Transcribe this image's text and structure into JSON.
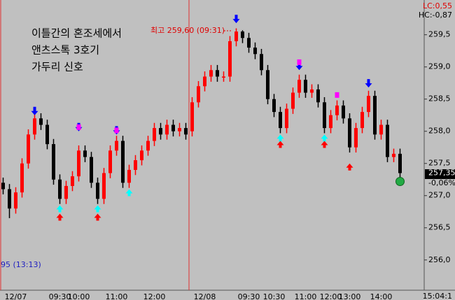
{
  "chart_data": {
    "type": "candlestick",
    "annotations": {
      "headline": [
        "이틀간의 혼조세에서",
        "앤츠스톡 3호기",
        "가두리 신호"
      ],
      "high_note": "최고 259,60 (09:31)",
      "low_note": "95 (13:13)",
      "lc": "LC:0,55",
      "hc": "HC:-0,87",
      "clock": "15:04:1",
      "change": "-0,06%"
    },
    "last_price": {
      "value": 257.35,
      "label": "257,35"
    },
    "up_color": "#ff0000",
    "down_color": "#000000",
    "categories": [
      null,
      null,
      "12/07",
      null,
      null,
      null,
      null,
      null,
      null,
      "09:30",
      null,
      null,
      "10:00",
      null,
      null,
      null,
      null,
      null,
      "11:00",
      null,
      null,
      null,
      null,
      null,
      "12:00",
      null,
      null,
      null,
      null,
      null,
      null,
      null,
      "12/08",
      null,
      null,
      null,
      null,
      null,
      null,
      "09:30",
      null,
      null,
      null,
      "10:30",
      null,
      null,
      null,
      null,
      "11:00",
      null,
      null,
      null,
      "12:00",
      null,
      null,
      "13:00",
      null,
      null,
      null,
      null,
      "14:00",
      null,
      null,
      null
    ],
    "open": [
      257.2,
      257.1,
      256.8,
      257.05,
      257.5,
      257.95,
      258.2,
      258.1,
      257.8,
      257.25,
      256.95,
      257.15,
      257.3,
      257.7,
      257.6,
      257.2,
      256.95,
      257.35,
      257.7,
      257.85,
      257.2,
      257.4,
      257.55,
      257.7,
      257.85,
      258.05,
      257.95,
      258.1,
      258.0,
      258.05,
      258.0,
      258.45,
      258.7,
      258.85,
      258.95,
      258.85,
      258.85,
      259.4,
      259.55,
      259.45,
      259.3,
      259.2,
      258.95,
      258.5,
      258.3,
      258.05,
      258.35,
      258.6,
      258.8,
      258.6,
      258.65,
      258.45,
      258.05,
      258.25,
      258.4,
      258.2,
      257.75,
      258.05,
      258.3,
      258.55,
      257.95,
      258.1,
      257.6,
      257.65
    ],
    "high": [
      257.28,
      257.18,
      257.13,
      257.58,
      258.03,
      258.28,
      258.28,
      258.18,
      257.88,
      257.33,
      257.23,
      257.38,
      257.78,
      257.78,
      257.68,
      257.28,
      257.43,
      257.78,
      257.93,
      257.93,
      257.48,
      257.63,
      257.78,
      257.93,
      258.13,
      258.13,
      258.18,
      258.18,
      258.13,
      258.13,
      258.53,
      258.78,
      258.93,
      259.03,
      259.03,
      258.93,
      259.48,
      259.6,
      259.57,
      259.53,
      259.38,
      259.28,
      259.03,
      258.58,
      258.38,
      258.43,
      258.68,
      258.88,
      258.88,
      258.73,
      258.73,
      258.53,
      258.33,
      258.48,
      258.48,
      258.28,
      258.13,
      258.38,
      258.63,
      258.63,
      258.18,
      258.18,
      257.73,
      257.73
    ],
    "low": [
      257.02,
      256.65,
      256.72,
      256.97,
      257.42,
      257.87,
      258.02,
      257.72,
      257.17,
      256.87,
      256.87,
      257.07,
      257.22,
      257.52,
      257.12,
      256.87,
      256.87,
      257.27,
      257.62,
      257.12,
      257.12,
      257.32,
      257.47,
      257.62,
      257.77,
      257.87,
      257.87,
      257.92,
      257.92,
      257.87,
      257.92,
      258.37,
      258.62,
      258.77,
      258.77,
      258.77,
      258.77,
      259.32,
      259.37,
      259.22,
      259.12,
      258.87,
      258.42,
      258.22,
      257.97,
      257.97,
      258.27,
      258.52,
      258.52,
      258.52,
      258.37,
      257.97,
      257.97,
      258.17,
      258.12,
      257.67,
      257.67,
      257.97,
      258.22,
      257.87,
      257.87,
      257.52,
      257.52,
      257.27
    ],
    "close": [
      257.1,
      256.8,
      257.05,
      257.5,
      257.95,
      258.2,
      258.1,
      257.8,
      257.25,
      256.95,
      257.15,
      257.3,
      257.7,
      257.6,
      257.2,
      256.95,
      257.35,
      257.7,
      257.85,
      257.2,
      257.4,
      257.55,
      257.7,
      257.85,
      258.05,
      257.95,
      258.1,
      258.0,
      258.05,
      257.95,
      258.45,
      258.7,
      258.85,
      258.95,
      258.85,
      258.85,
      259.4,
      259.55,
      259.45,
      259.3,
      259.2,
      258.95,
      258.5,
      258.3,
      258.05,
      258.35,
      258.6,
      258.8,
      258.6,
      258.65,
      258.45,
      258.05,
      258.25,
      258.4,
      258.2,
      257.75,
      258.05,
      258.3,
      258.55,
      257.95,
      258.1,
      257.6,
      257.65,
      257.35
    ],
    "markers": [
      {
        "color": "#0000ff",
        "shape": "arrow-down",
        "x": [
          5,
          12,
          18,
          37,
          47,
          58
        ],
        "values": [
          258.25,
          258.0,
          257.95,
          259.68,
          258.95,
          258.68
        ]
      },
      {
        "color": "#ff00ff",
        "shape": "bar",
        "x": [
          12,
          18,
          47,
          53
        ],
        "values": [
          258.02,
          257.97,
          259.03,
          258.52
        ]
      },
      {
        "color": "#00ffff",
        "shape": "arrow-up",
        "x": [
          9,
          15,
          20,
          44,
          51
        ],
        "values": [
          256.85,
          256.85,
          257.1,
          257.95,
          257.95
        ]
      },
      {
        "color": "#ff0000",
        "shape": "arrow-up",
        "x": [
          9,
          15,
          44,
          51,
          55
        ],
        "values": [
          256.72,
          256.72,
          257.85,
          257.85,
          257.5
        ]
      },
      {
        "color": "#22aa44",
        "shape": "circle",
        "x": [
          63
        ],
        "values": [
          257.22
        ]
      }
    ],
    "ylim": [
      255.53,
      260.04
    ],
    "yticks": [
      {
        "value": 256.0,
        "label": "256,0"
      },
      {
        "value": 256.5,
        "label": "256,5"
      },
      {
        "value": 257.0,
        "label": "257,0"
      },
      {
        "value": 257.5,
        "label": "257,5"
      },
      {
        "value": 258.0,
        "label": "258,0"
      },
      {
        "value": 258.5,
        "label": "258,5"
      },
      {
        "value": 259.0,
        "label": "259,0"
      },
      {
        "value": 259.5,
        "label": "259,5"
      }
    ]
  }
}
